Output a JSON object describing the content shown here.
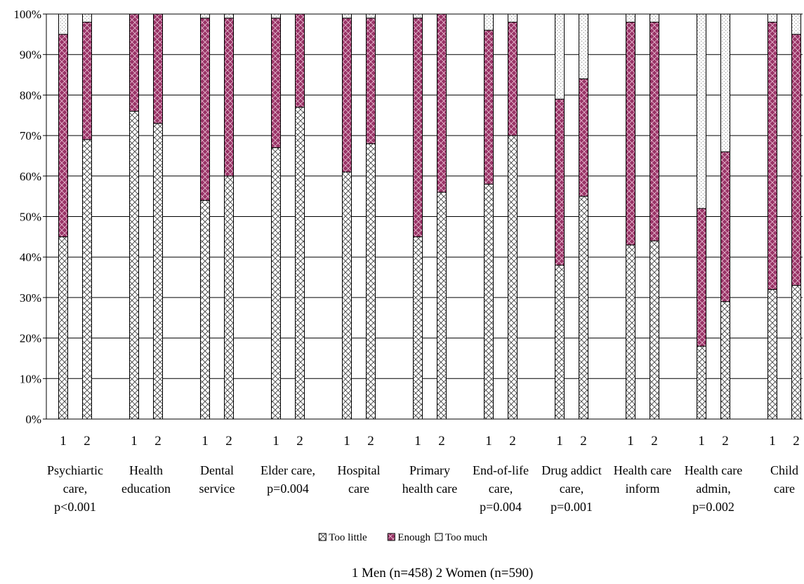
{
  "chart_data": {
    "type": "bar",
    "stacked": true,
    "percent_stacked": true,
    "ylim": [
      0,
      100
    ],
    "y_ticks": [
      "0%",
      "10%",
      "20%",
      "30%",
      "40%",
      "50%",
      "60%",
      "70%",
      "80%",
      "90%",
      "100%"
    ],
    "grid": true,
    "legend_position": "bottom",
    "bar_labels": [
      "1",
      "2"
    ],
    "groups": [
      {
        "label": [
          "Psychiartic",
          "care,",
          "p<0.001"
        ],
        "bars": [
          [
            45,
            50,
            5
          ],
          [
            69,
            29,
            2
          ]
        ]
      },
      {
        "label": [
          "Health",
          "education"
        ],
        "bars": [
          [
            76,
            24,
            0
          ],
          [
            73,
            27,
            0
          ]
        ]
      },
      {
        "label": [
          "Dental",
          "service"
        ],
        "bars": [
          [
            54,
            45,
            1
          ],
          [
            60,
            39,
            1
          ]
        ]
      },
      {
        "label": [
          "Elder care,",
          "p=0.004"
        ],
        "bars": [
          [
            67,
            32,
            1
          ],
          [
            77,
            23,
            0
          ]
        ]
      },
      {
        "label": [
          "Hospital",
          "care"
        ],
        "bars": [
          [
            61,
            38,
            1
          ],
          [
            68,
            31,
            1
          ]
        ]
      },
      {
        "label": [
          "Primary",
          "health care"
        ],
        "bars": [
          [
            45,
            54,
            1
          ],
          [
            56,
            44,
            0
          ]
        ]
      },
      {
        "label": [
          "End-of-life",
          "care,",
          "p=0.004"
        ],
        "bars": [
          [
            58,
            38,
            4
          ],
          [
            70,
            28,
            2
          ]
        ]
      },
      {
        "label": [
          "Drug addict",
          "care,",
          "p=0.001"
        ],
        "bars": [
          [
            38,
            41,
            21
          ],
          [
            55,
            29,
            16
          ]
        ]
      },
      {
        "label": [
          "Health care",
          "inform"
        ],
        "bars": [
          [
            43,
            55,
            2
          ],
          [
            44,
            54,
            2
          ]
        ]
      },
      {
        "label": [
          "Health care",
          "admin,",
          "p=0.002"
        ],
        "bars": [
          [
            18,
            34,
            48
          ],
          [
            29,
            37,
            34
          ]
        ]
      },
      {
        "label": [
          "Child",
          "care"
        ],
        "bars": [
          [
            32,
            66,
            2
          ],
          [
            33,
            62,
            5
          ]
        ]
      }
    ],
    "series": [
      {
        "name": "Too little",
        "pattern": "crosshatch",
        "color": "#ffffff"
      },
      {
        "name": "Enough",
        "pattern": "crosshatch",
        "color": "#993366"
      },
      {
        "name": "Too much",
        "pattern": "dots",
        "color": "#ffffff"
      }
    ],
    "footnote": "1 Men  (n=458)  2 Women (n=590)"
  }
}
